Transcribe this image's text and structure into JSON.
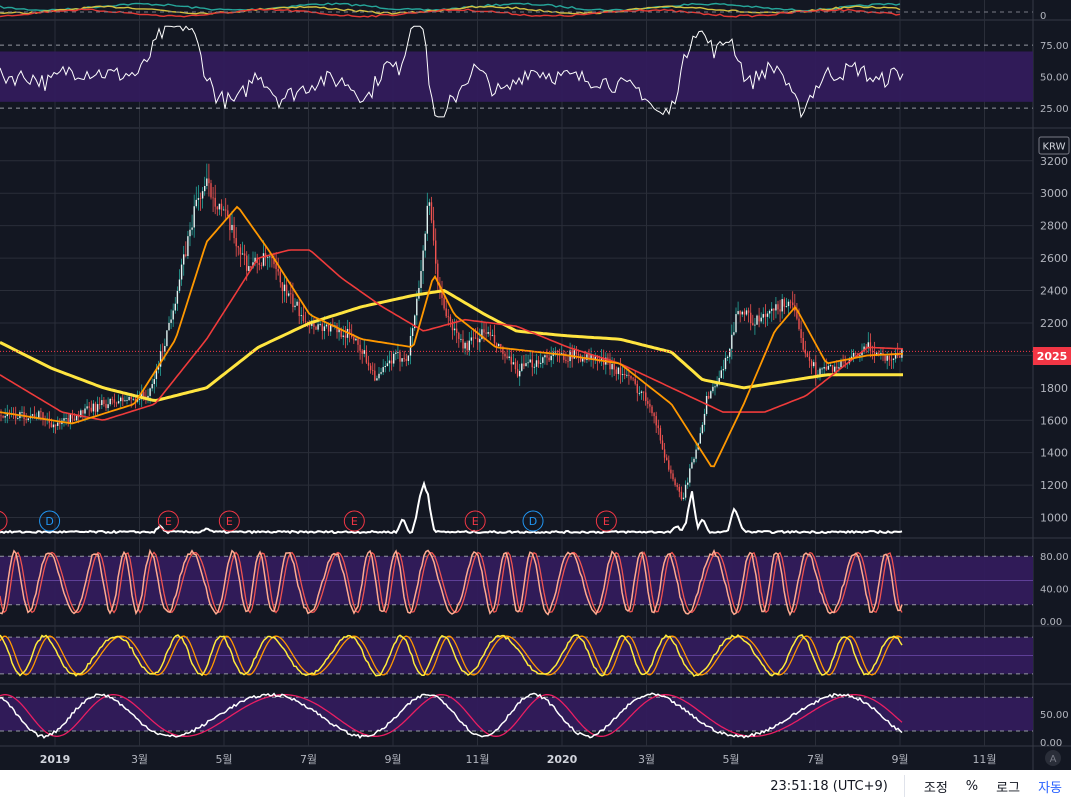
{
  "currency_label": "KRW",
  "last_price_label": "2025",
  "bottom_bar": {
    "clock": "23:51:18 (UTC+9)",
    "adjust": "조정",
    "percent": "%",
    "log": "로그",
    "auto": "자동"
  },
  "scale_corner": "A",
  "colors": {
    "background": "#131722",
    "band_fill": "#311b5c",
    "candle": "#26a69a",
    "white_line": "#ffffff",
    "ma_short": "#ff9800",
    "ma_mid": "#ef3b3b",
    "ma_long": "#ffe540",
    "osc_k": "#ffffff",
    "osc_d": "#e91e63"
  },
  "chart_data": {
    "type": "line",
    "x_axis": {
      "tick_labels": [
        "2019",
        "3월",
        "5월",
        "7월",
        "9월",
        "11월",
        "2020",
        "3월",
        "5월",
        "7월",
        "9월",
        "11월"
      ]
    },
    "price_panel": {
      "unit": "KRW",
      "y_ticks": [
        1000,
        1200,
        1400,
        1600,
        1800,
        2000,
        2200,
        2400,
        2600,
        2800,
        3000,
        3200
      ],
      "ylim": [
        880,
        3390
      ],
      "last_price": 2025,
      "close": {
        "t": [
          0.0,
          0.04,
          0.055,
          0.07,
          0.1,
          0.125,
          0.145,
          0.16,
          0.175,
          0.19,
          0.2,
          0.215,
          0.225,
          0.24,
          0.26,
          0.28,
          0.3,
          0.33,
          0.345,
          0.365,
          0.38,
          0.395,
          0.405,
          0.415,
          0.425,
          0.435,
          0.45,
          0.47,
          0.5,
          0.53,
          0.56,
          0.59,
          0.61,
          0.63,
          0.645,
          0.66,
          0.675,
          0.685,
          0.7,
          0.715,
          0.73,
          0.745,
          0.765,
          0.775,
          0.79,
          0.82,
          0.84,
          0.86,
          0.875
        ],
        "v": [
          1630,
          1630,
          1560,
          1620,
          1700,
          1730,
          1760,
          2100,
          2500,
          2950,
          3050,
          2900,
          2750,
          2550,
          2600,
          2350,
          2200,
          2150,
          2100,
          1850,
          1980,
          2000,
          2400,
          2950,
          2400,
          2200,
          2050,
          2150,
          1900,
          2000,
          2000,
          1950,
          1850,
          1700,
          1350,
          1100,
          1450,
          1750,
          1900,
          2300,
          2200,
          2250,
          2350,
          2100,
          1900,
          1950,
          2050,
          1980,
          2025
        ]
      },
      "ma_short": {
        "t": [
          0.0,
          0.07,
          0.13,
          0.17,
          0.2,
          0.23,
          0.26,
          0.3,
          0.35,
          0.4,
          0.42,
          0.44,
          0.48,
          0.55,
          0.6,
          0.65,
          0.69,
          0.72,
          0.75,
          0.77,
          0.8,
          0.84,
          0.875
        ],
        "v": [
          1650,
          1580,
          1700,
          2100,
          2700,
          2920,
          2650,
          2250,
          2100,
          2050,
          2500,
          2250,
          2050,
          2000,
          1950,
          1700,
          1300,
          1700,
          2150,
          2300,
          1950,
          2000,
          2010
        ]
      },
      "ma_mid": {
        "t": [
          0.0,
          0.06,
          0.1,
          0.15,
          0.2,
          0.25,
          0.28,
          0.3,
          0.33,
          0.37,
          0.41,
          0.45,
          0.5,
          0.55,
          0.6,
          0.65,
          0.7,
          0.74,
          0.78,
          0.81,
          0.84,
          0.875
        ],
        "v": [
          1880,
          1650,
          1600,
          1700,
          2100,
          2600,
          2650,
          2650,
          2480,
          2300,
          2150,
          2220,
          2180,
          2050,
          1950,
          1800,
          1650,
          1650,
          1750,
          1900,
          2050,
          2040
        ]
      },
      "ma_long": {
        "t": [
          0.0,
          0.05,
          0.1,
          0.15,
          0.2,
          0.25,
          0.3,
          0.35,
          0.4,
          0.43,
          0.47,
          0.5,
          0.55,
          0.6,
          0.65,
          0.68,
          0.72,
          0.76,
          0.8,
          0.84,
          0.875
        ],
        "v": [
          2080,
          1920,
          1800,
          1720,
          1800,
          2050,
          2200,
          2300,
          2370,
          2400,
          2250,
          2150,
          2120,
          2100,
          2020,
          1850,
          1800,
          1840,
          1880,
          1880,
          1880
        ]
      },
      "events": [
        {
          "label": "D",
          "t": 0.048,
          "color": "#2196f3"
        },
        {
          "label": "E",
          "t": 0.163,
          "color": "#f23645"
        },
        {
          "label": "E",
          "t": 0.222,
          "color": "#f23645"
        },
        {
          "label": "E",
          "t": 0.343,
          "color": "#f23645"
        },
        {
          "label": "E",
          "t": 0.46,
          "color": "#f23645"
        },
        {
          "label": "D",
          "t": 0.516,
          "color": "#2196f3"
        },
        {
          "label": "E",
          "t": 0.587,
          "color": "#f23645"
        }
      ]
    },
    "rsi_panel": {
      "y_ticks": [
        25,
        50,
        75
      ],
      "band": [
        30,
        70
      ],
      "ylim": [
        10,
        95
      ]
    },
    "stoch_panel": {
      "y_ticks": [
        0,
        40,
        80
      ],
      "band": [
        20,
        80
      ],
      "ylim": [
        -5,
        100
      ]
    },
    "osc_panel_2": {
      "y_ticks": [],
      "band": [
        10,
        90
      ],
      "ylim": [
        -10,
        110
      ]
    },
    "osc_panel_3": {
      "y_ticks": [
        0,
        50
      ],
      "band": [
        20,
        80
      ],
      "ylim": [
        -5,
        100
      ]
    },
    "grid": true,
    "legend": "none"
  }
}
